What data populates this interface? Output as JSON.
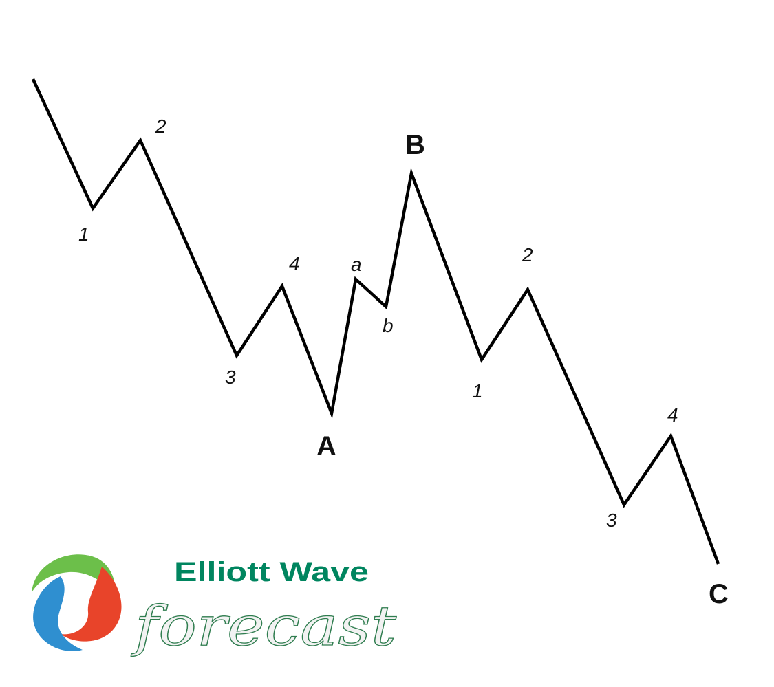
{
  "diagram": {
    "line_color": "#000000",
    "labels": {
      "impulse1": {
        "w1": "1",
        "w2": "2",
        "w3": "3",
        "w4": "4"
      },
      "A": "A",
      "a": "a",
      "b": "b",
      "B": "B",
      "impulse2": {
        "w1": "1",
        "w2": "2",
        "w3": "3",
        "w4": "4"
      },
      "C": "C"
    }
  },
  "logo": {
    "line1": "Elliott Wave",
    "line2": "forecast",
    "colors": {
      "green": "#6cbf4a",
      "red": "#e8442a",
      "blue": "#2f8fd0",
      "text": "#00855f"
    }
  }
}
